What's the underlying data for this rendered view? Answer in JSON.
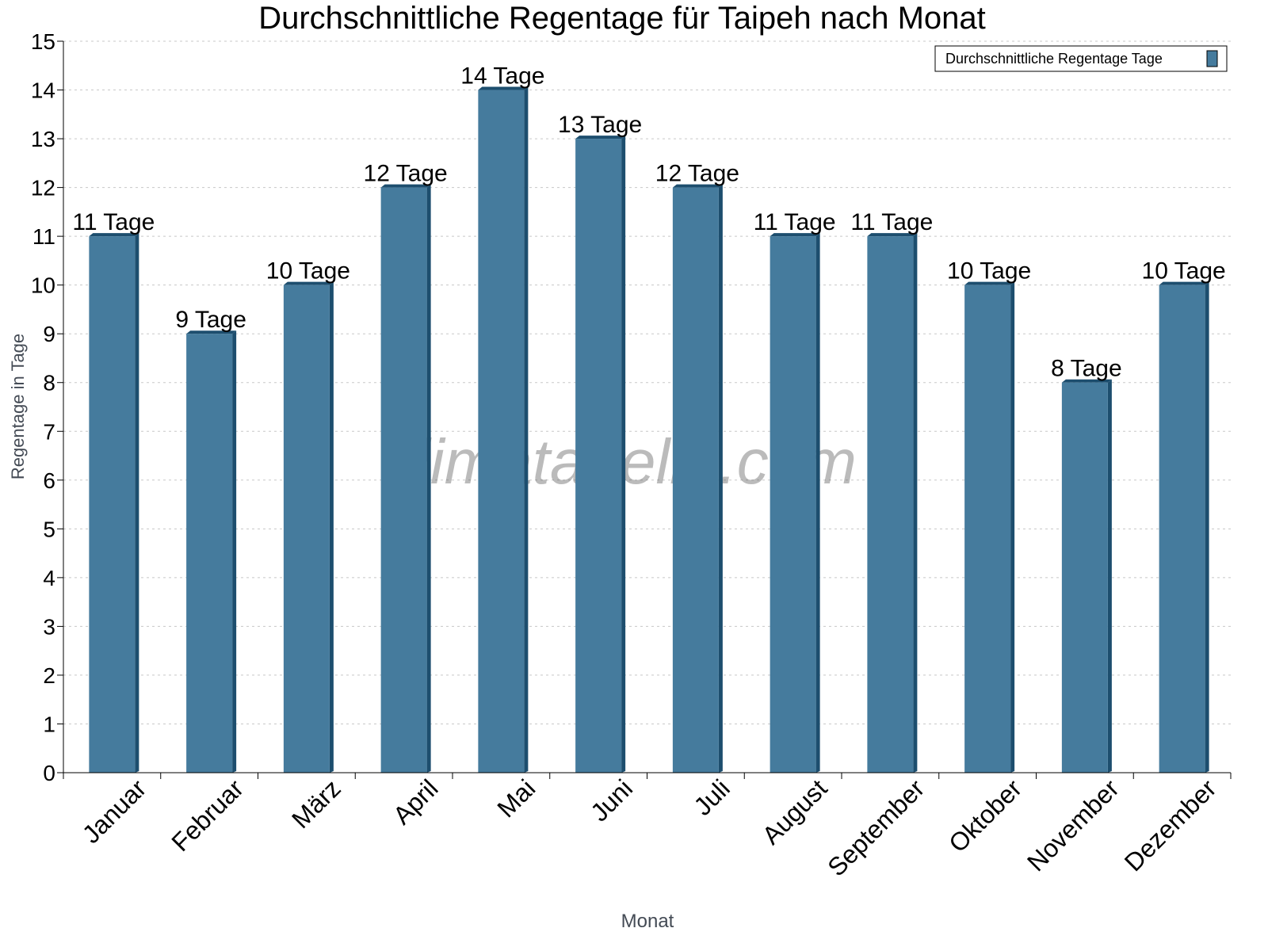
{
  "chart_data": {
    "type": "bar",
    "title": "Durchschnittliche Regentage für Taipeh nach Monat",
    "xlabel": "Monat",
    "ylabel": "Regentage in Tage",
    "categories": [
      "Januar",
      "Februar",
      "März",
      "April",
      "Mai",
      "Juni",
      "Juli",
      "August",
      "September",
      "Oktober",
      "November",
      "Dezember"
    ],
    "series": [
      {
        "name": "Durchschnittliche Regentage Tage",
        "values": [
          11,
          9,
          10,
          12,
          14,
          13,
          12,
          11,
          11,
          10,
          8,
          10
        ],
        "color": "#457b9d",
        "side_color": "#1d4e6e"
      }
    ],
    "data_label_suffix": " Tage",
    "ylim": [
      0,
      15
    ],
    "yticks": [
      0,
      1,
      2,
      3,
      4,
      5,
      6,
      7,
      8,
      9,
      10,
      11,
      12,
      13,
      14,
      15
    ],
    "grid": true,
    "legend": "top-right",
    "watermark": "klimatabelle.com"
  }
}
